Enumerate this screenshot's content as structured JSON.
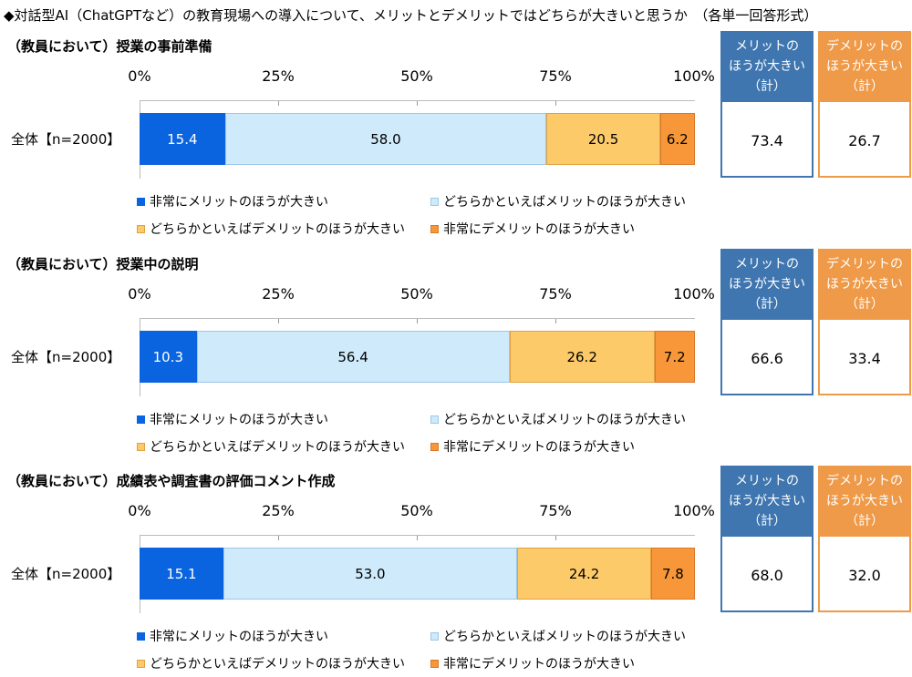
{
  "title": "◆対話型AI（ChatGPTなど）の教育現場への導入について、メリットとデメリットではどちらが大きいと思うか　（各単一回答形式）",
  "colors": {
    "very_merit": "#0a64e0",
    "somewhat_merit": "#cfeafb",
    "somewhat_demerit": "#fdca6a",
    "very_demerit": "#f7973a",
    "merit_box": "#3f76b0",
    "demerit_box": "#ef9a48"
  },
  "summary_headers": {
    "merit": [
      "メリットの",
      "ほうが大きい",
      "（計）"
    ],
    "demerit": [
      "デメリットの",
      "ほうが大きい",
      "（計）"
    ]
  },
  "chart_data": [
    {
      "type": "bar",
      "stacked": true,
      "orientation": "horizontal",
      "title": "（教員において）授業の事前準備",
      "xlim": [
        0,
        100
      ],
      "ticks": [
        "0%",
        "25%",
        "50%",
        "75%",
        "100%"
      ],
      "categories": [
        "全体【n=2000】"
      ],
      "series": [
        {
          "name": "非常にメリットのほうが大きい",
          "values": [
            15.4
          ]
        },
        {
          "name": "どちらかといえばメリットのほうが大きい",
          "values": [
            58.0
          ]
        },
        {
          "name": "どちらかといえばデメリットのほうが大きい",
          "values": [
            20.5
          ]
        },
        {
          "name": "非常にデメリットのほうが大きい",
          "values": [
            6.2
          ]
        }
      ],
      "summary": {
        "merit": "73.4",
        "demerit": "26.7"
      }
    },
    {
      "type": "bar",
      "stacked": true,
      "orientation": "horizontal",
      "title": "（教員において）授業中の説明",
      "xlim": [
        0,
        100
      ],
      "ticks": [
        "0%",
        "25%",
        "50%",
        "75%",
        "100%"
      ],
      "categories": [
        "全体【n=2000】"
      ],
      "series": [
        {
          "name": "非常にメリットのほうが大きい",
          "values": [
            10.3
          ]
        },
        {
          "name": "どちらかといえばメリットのほうが大きい",
          "values": [
            56.4
          ]
        },
        {
          "name": "どちらかといえばデメリットのほうが大きい",
          "values": [
            26.2
          ]
        },
        {
          "name": "非常にデメリットのほうが大きい",
          "values": [
            7.2
          ]
        }
      ],
      "summary": {
        "merit": "66.6",
        "demerit": "33.4"
      }
    },
    {
      "type": "bar",
      "stacked": true,
      "orientation": "horizontal",
      "title": "（教員において）成績表や調査書の評価コメント作成",
      "xlim": [
        0,
        100
      ],
      "ticks": [
        "0%",
        "25%",
        "50%",
        "75%",
        "100%"
      ],
      "categories": [
        "全体【n=2000】"
      ],
      "series": [
        {
          "name": "非常にメリットのほうが大きい",
          "values": [
            15.1
          ]
        },
        {
          "name": "どちらかといえばメリットのほうが大きい",
          "values": [
            53.0
          ]
        },
        {
          "name": "どちらかといえばデメリットのほうが大きい",
          "values": [
            24.2
          ]
        },
        {
          "name": "非常にデメリットのほうが大きい",
          "values": [
            7.8
          ]
        }
      ],
      "summary": {
        "merit": "68.0",
        "demerit": "32.0"
      }
    }
  ]
}
